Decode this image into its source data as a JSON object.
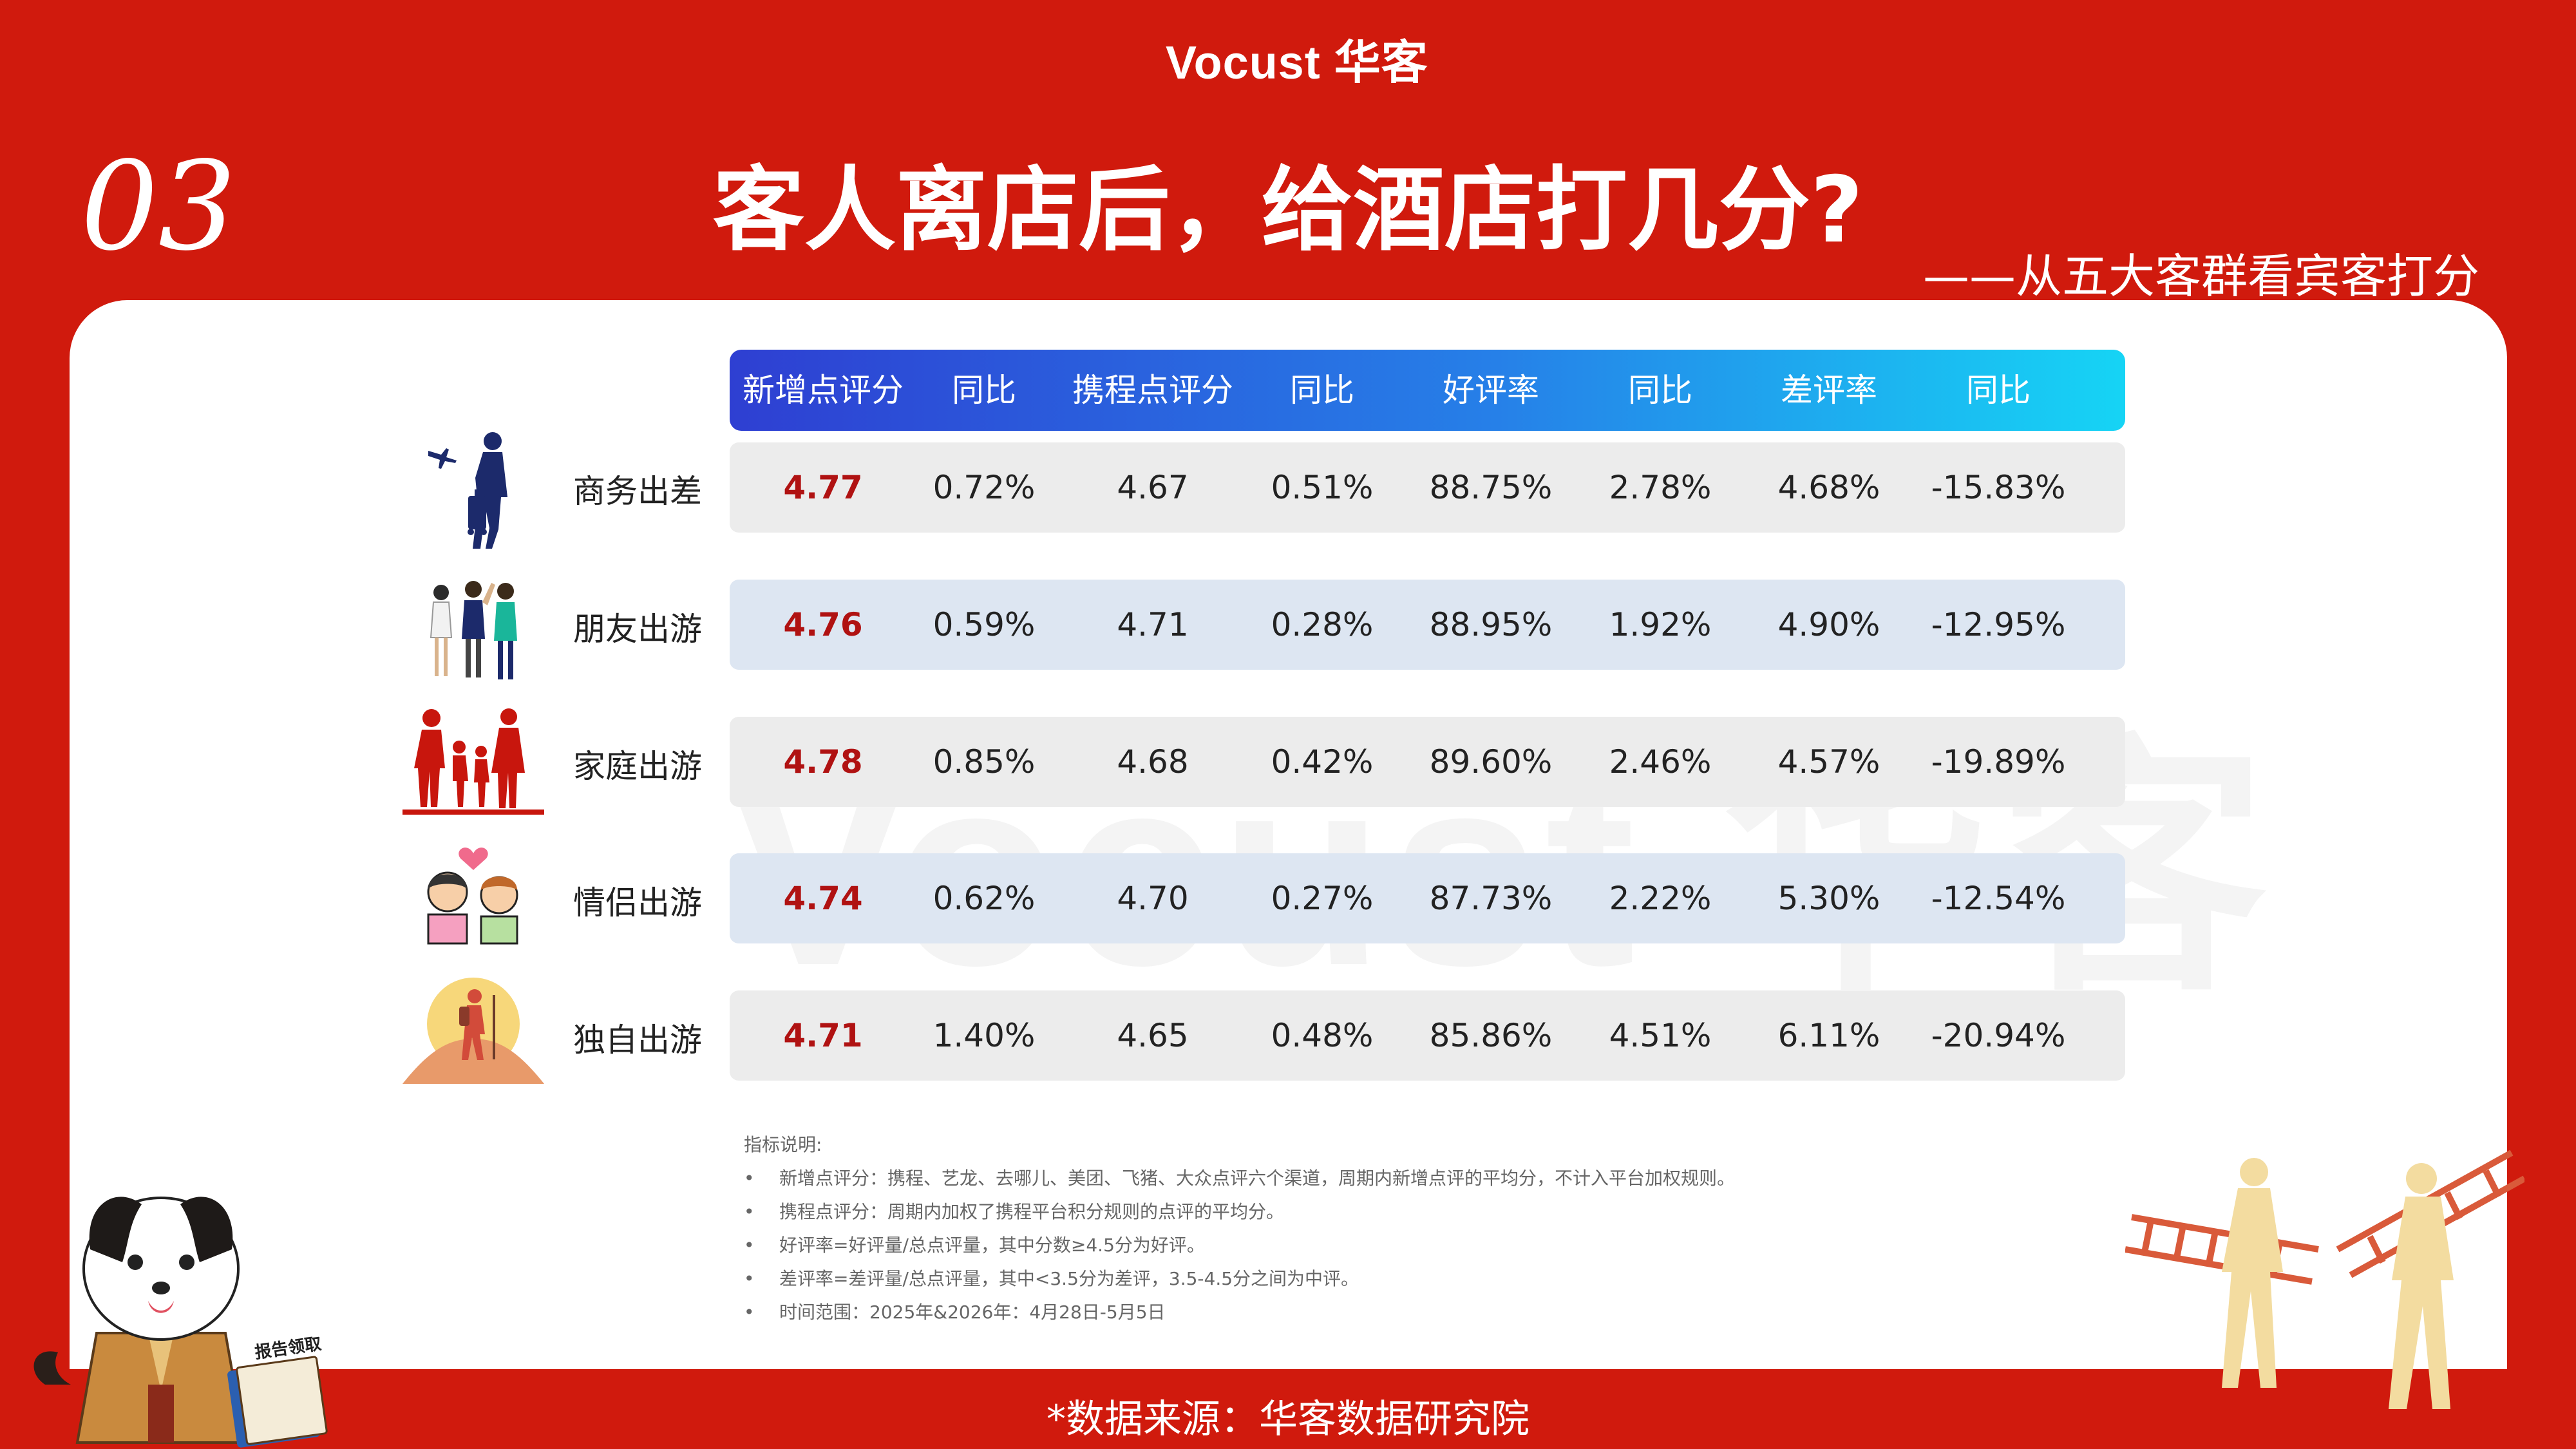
{
  "brand": "Vocust 华客",
  "section_number": "03",
  "title": "客人离店后，给酒店打几分?",
  "subtitle": "——从五大客群看宾客打分",
  "watermark": "Vocust 华客",
  "headers": [
    "新增点评分",
    "同比",
    "携程点评分",
    "同比",
    "好评率",
    "同比",
    "差评率",
    "同比"
  ],
  "rows": [
    {
      "segment": "商务出差",
      "icon": "business-traveler-icon",
      "values": [
        "4.77",
        "0.72%",
        "4.67",
        "0.51%",
        "88.75%",
        "2.78%",
        "4.68%",
        "-15.83%"
      ]
    },
    {
      "segment": "朋友出游",
      "icon": "friends-group-icon",
      "values": [
        "4.76",
        "0.59%",
        "4.71",
        "0.28%",
        "88.95%",
        "1.92%",
        "4.90%",
        "-12.95%"
      ]
    },
    {
      "segment": "家庭出游",
      "icon": "family-icon",
      "values": [
        "4.78",
        "0.85%",
        "4.68",
        "0.42%",
        "89.60%",
        "2.46%",
        "4.57%",
        "-19.89%"
      ]
    },
    {
      "segment": "情侣出游",
      "icon": "couple-icon",
      "values": [
        "4.74",
        "0.62%",
        "4.70",
        "0.27%",
        "87.73%",
        "2.22%",
        "5.30%",
        "-12.54%"
      ]
    },
    {
      "segment": "独自出游",
      "icon": "solo-hiker-icon",
      "values": [
        "4.71",
        "1.40%",
        "4.65",
        "0.48%",
        "85.86%",
        "4.51%",
        "6.11%",
        "-20.94%"
      ]
    }
  ],
  "notes": {
    "heading": "指标说明:",
    "bullet": "•",
    "items": [
      "新增点评分：携程、艺龙、去哪儿、美团、飞猪、大众点评六个渠道，周期内新增点评的平均分，不计入平台加权规则。",
      "携程点评分：周期内加权了携程平台积分规则的点评的平均分。",
      "好评率=好评量/总点评量，其中分数≥4.5分为好评。",
      "差评率=差评量/总点评量，其中<3.5分为差评，3.5-4.5分之间为中评。",
      "时间范围：2025年&2026年：4月28日-5月5日"
    ]
  },
  "book_label": "报告领取",
  "footer": "*数据来源：华客数据研究院",
  "colors": {
    "background": "#d01a0d",
    "score": "#b01212",
    "header_start": "#2e3fd2",
    "header_end": "#16d4f5"
  }
}
